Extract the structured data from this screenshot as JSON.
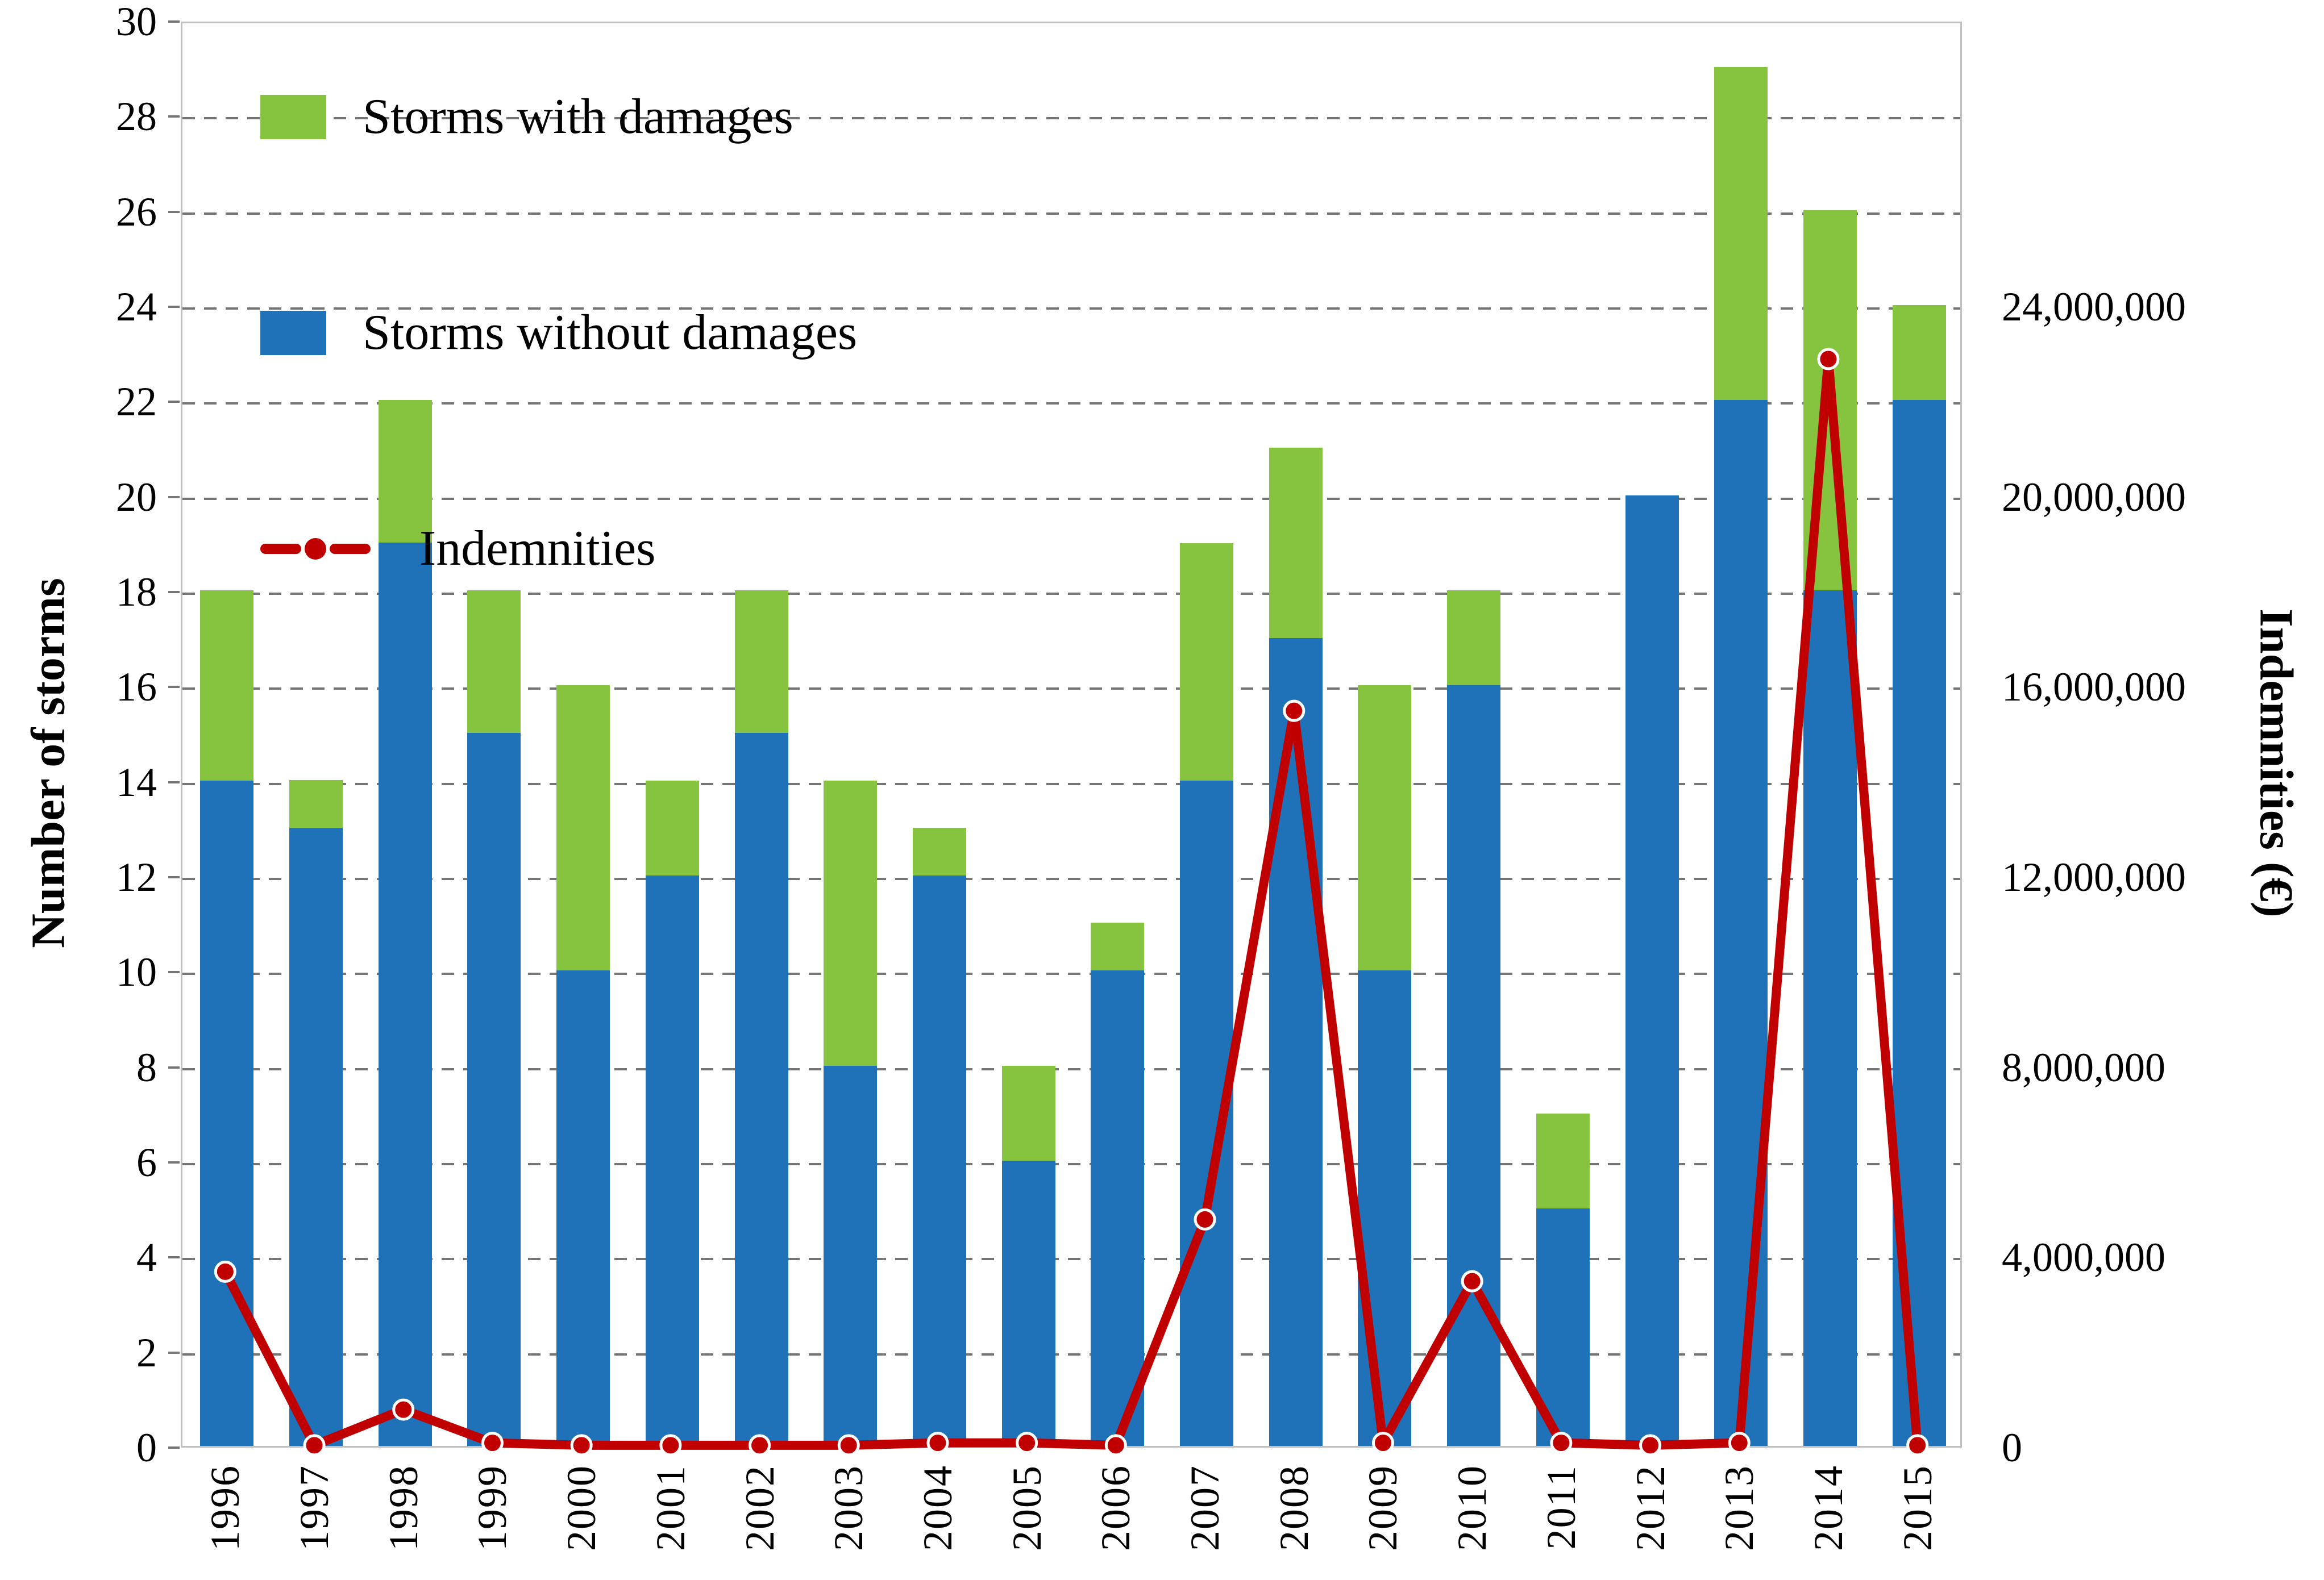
{
  "chart_data": {
    "type": "bar",
    "subtype": "stacked-bars-with-line-overlay",
    "categories": [
      "1996",
      "1997",
      "1998",
      "1999",
      "2000",
      "2001",
      "2002",
      "2003",
      "2004",
      "2005",
      "2006",
      "2007",
      "2008",
      "2009",
      "2010",
      "2011",
      "2012",
      "2013",
      "2014",
      "2015"
    ],
    "series": [
      {
        "name": "Storms with damages",
        "type": "bar",
        "stack_position": "top",
        "color": "#86C440",
        "values": [
          4,
          1,
          3,
          3,
          6,
          2,
          3,
          6,
          1,
          2,
          1,
          5,
          4,
          6,
          2,
          2,
          0,
          7,
          8,
          2
        ]
      },
      {
        "name": "Storms without damages",
        "type": "bar",
        "stack_position": "bottom",
        "color": "#1F72B8",
        "values": [
          14,
          13,
          19,
          15,
          10,
          12,
          15,
          8,
          12,
          6,
          10,
          14,
          17,
          10,
          16,
          5,
          20,
          22,
          18,
          22
        ]
      },
      {
        "name": "Indemnities",
        "type": "line",
        "axis": "right",
        "color": "#C00000",
        "marker": "circle-white-edge",
        "values": [
          3700000,
          50000,
          800000,
          100000,
          50000,
          50000,
          50000,
          50000,
          100000,
          100000,
          50000,
          4800000,
          15500000,
          100000,
          3500000,
          100000,
          50000,
          100000,
          22900000,
          50000
        ]
      }
    ],
    "stacked_totals": [
      18,
      14,
      22,
      18,
      16,
      14,
      18,
      14,
      13,
      8,
      11,
      19,
      21,
      16,
      18,
      7,
      20,
      29,
      26,
      24
    ],
    "title": "",
    "xlabel": "",
    "ylabel_left": "Number of storms",
    "ylabel_right": "Indemnities (€)",
    "y_left_axis": {
      "min": 0,
      "max": 30,
      "tick_step": 2
    },
    "y_right_axis": {
      "min": 0,
      "max": 30000000,
      "label_step": 4000000,
      "number_format": "thousands-separated"
    },
    "grid": "horizontal dashed gray, behind bars",
    "legend_position": "inside top-left",
    "x_tick_label_rotation": -90,
    "colors": {
      "grid": "#757575",
      "plot_border": "#bfbfbf",
      "marker_edge": "#ffffff",
      "text": "#000000"
    }
  }
}
